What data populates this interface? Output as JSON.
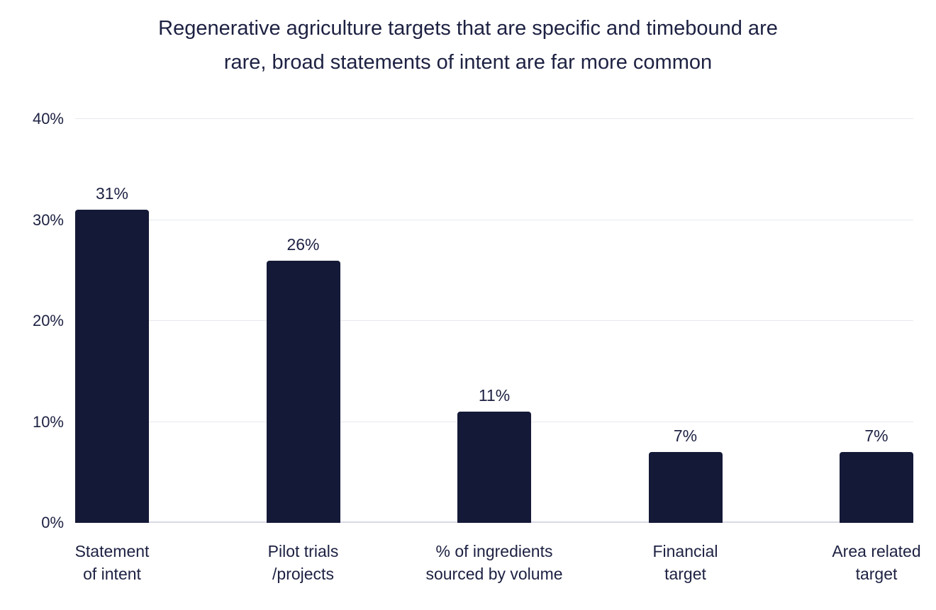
{
  "chart": {
    "title_line1": "Regenerative agriculture targets that are specific and timebound are",
    "title_line2": "rare, broad statements of intent are far more common"
  },
  "chart_data": {
    "type": "bar",
    "title": "Regenerative agriculture targets that are specific and timebound are rare, broad statements of intent are far more common",
    "categories": [
      "Statement of intent",
      "Pilot trials /projects",
      "% of ingredients sourced by volume",
      "Financial target",
      "Area related target"
    ],
    "category_lines": [
      [
        "Statement",
        "of intent"
      ],
      [
        "Pilot trials",
        "/projects"
      ],
      [
        "% of ingredients",
        "sourced by volume"
      ],
      [
        "Financial",
        "target"
      ],
      [
        "Area related",
        "target"
      ]
    ],
    "values": [
      31,
      26,
      11,
      7,
      7
    ],
    "value_labels": [
      "31%",
      "26%",
      "11%",
      "7%",
      "7%"
    ],
    "xlabel": "",
    "ylabel": "",
    "ylim": [
      0,
      40
    ],
    "yticks": [
      0,
      10,
      20,
      30,
      40
    ],
    "ytick_labels": [
      "0%",
      "10%",
      "20%",
      "30%",
      "40%"
    ],
    "grid": "horizontal",
    "legend": "none",
    "colors": {
      "bar": "#141937",
      "text": "#1d2142",
      "gridline": "#e8e9ee",
      "baseline": "#d8dae3",
      "background": "#ffffff"
    }
  }
}
